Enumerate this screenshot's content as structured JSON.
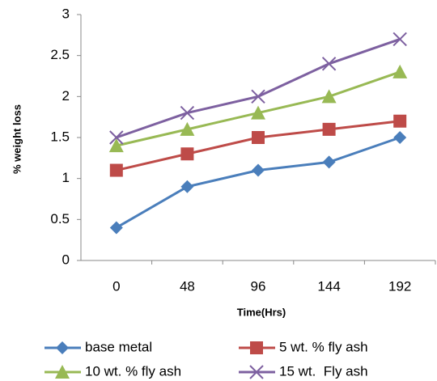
{
  "chart_data": {
    "type": "line",
    "x_label": "Time(Hrs)",
    "y_label": "% weight loss",
    "categories": [
      "0",
      "48",
      "96",
      "144",
      "192"
    ],
    "series": [
      {
        "name": "base metal",
        "color": "#4a7ebb",
        "marker": "diamond",
        "values": [
          0.4,
          0.9,
          1.1,
          1.2,
          1.5
        ]
      },
      {
        "name": "5 wt. % fly ash",
        "color": "#be4b48",
        "marker": "square",
        "values": [
          1.1,
          1.3,
          1.5,
          1.6,
          1.7
        ]
      },
      {
        "name": "10 wt. % fly ash",
        "color": "#98b954",
        "marker": "triangle",
        "values": [
          1.4,
          1.6,
          1.8,
          2.0,
          2.3
        ]
      },
      {
        "name": "15 wt.  Fly ash",
        "color": "#7d60a0",
        "marker": "x",
        "values": [
          1.5,
          1.8,
          2.0,
          2.4,
          2.7
        ]
      }
    ],
    "ylim": [
      0,
      3
    ],
    "yticks": [
      0,
      0.5,
      1,
      1.5,
      2,
      2.5,
      3
    ],
    "grid": false,
    "legend": "bottom"
  }
}
